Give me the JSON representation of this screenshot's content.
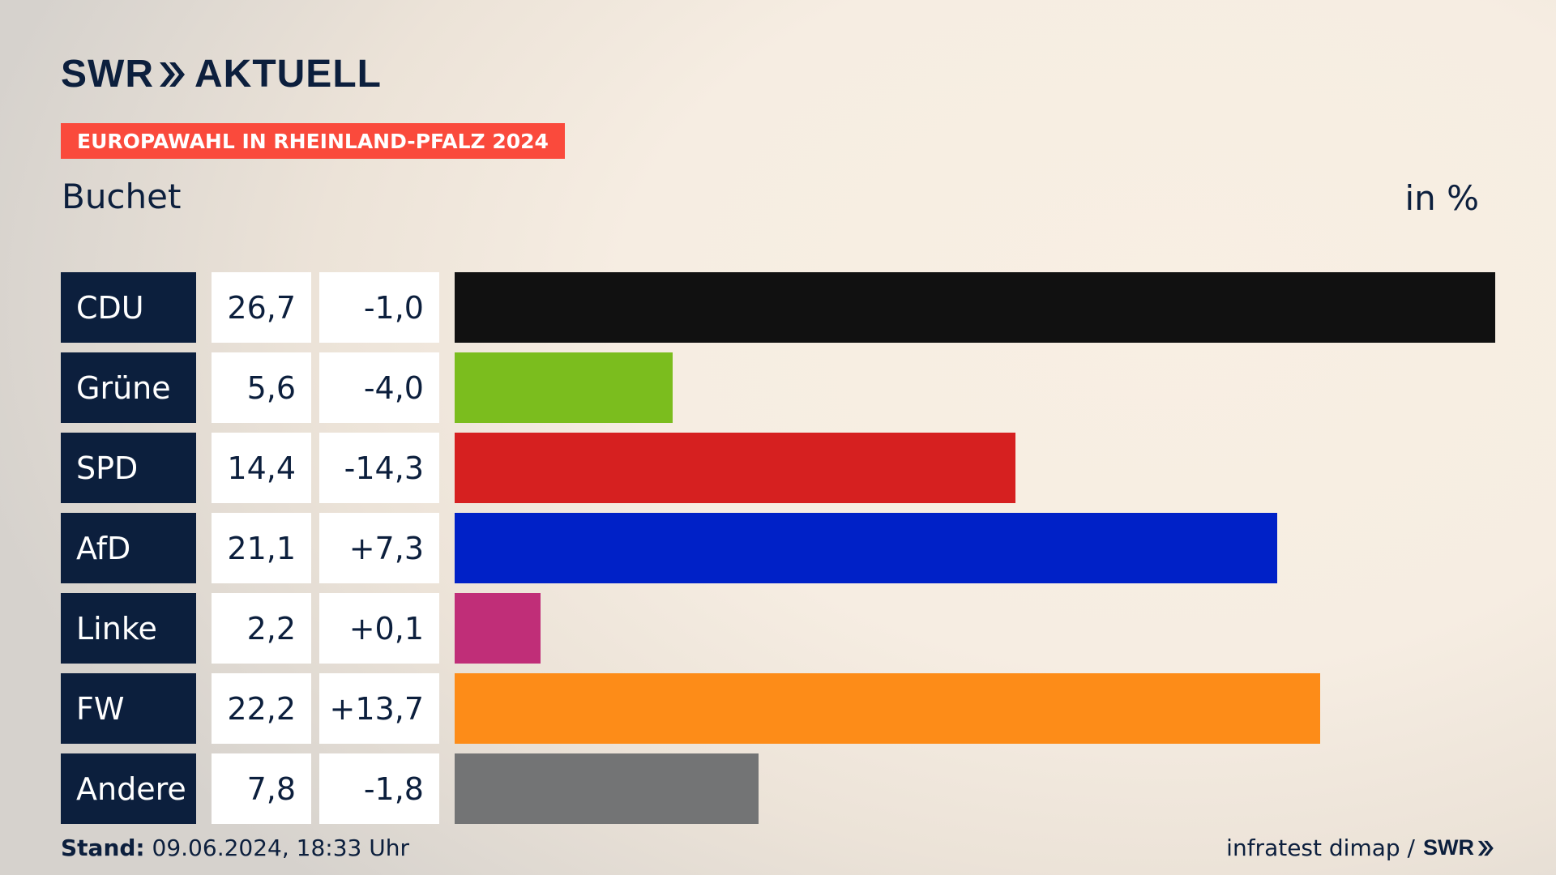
{
  "brand": {
    "logo_left": "SWR",
    "logo_right": "AKTUELL",
    "chevron_icon": "double-chevron-right-icon"
  },
  "tag": "EUROPAWAHL IN RHEINLAND-PFALZ 2024",
  "subtitle": "Buchet",
  "unit": "in %",
  "colors": {
    "navy": "#0c1f3d",
    "tag": "#fa4a3c"
  },
  "chart_data": {
    "type": "bar",
    "title": "Buchet",
    "unit": "in %",
    "xlim": [
      0,
      26.7
    ],
    "categories": [
      "CDU",
      "Grüne",
      "SPD",
      "AfD",
      "Linke",
      "FW",
      "Andere"
    ],
    "values": [
      26.7,
      5.6,
      14.4,
      21.1,
      2.2,
      22.2,
      7.8
    ],
    "value_labels": [
      "26,7",
      "5,6",
      "14,4",
      "21,1",
      "2,2",
      "22,2",
      "7,8"
    ],
    "diff_labels": [
      "-1,0",
      "-4,0",
      "-14,3",
      "+7,3",
      "+0,1",
      "+13,7",
      "-1,8"
    ],
    "colors": [
      "#111111",
      "#7bbd1e",
      "#d62020",
      "#0021c7",
      "#c02e78",
      "#fd8c18",
      "#737475"
    ]
  },
  "footer": {
    "stand_label": "Stand:",
    "stand_value": "09.06.2024, 18:33 Uhr",
    "source": "infratest dimap /",
    "source_brand": "SWR"
  }
}
